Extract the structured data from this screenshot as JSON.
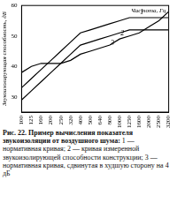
{
  "chart_data": {
    "type": "line",
    "title": "Рис. 22. Пример вычисления показателя звукоизоляции от воздушного шума:",
    "annotations": [
      "1 — нормативная кривая;",
      "2 — кривая измеренной звукоизолирующей способности конструкции;",
      "3 — нормативная кривая, сдвинутая в худшую сторону на 4 дБ"
    ],
    "x_label": "Частота, Гц",
    "y_label": "Звукоизолирующая способность, дБ",
    "categories": [
      "100",
      "125",
      "160",
      "200",
      "250",
      "320",
      "400",
      "500",
      "640",
      "800",
      "1000",
      "1250",
      "1600",
      "2000",
      "2500",
      "3200"
    ],
    "series": [
      {
        "name": "1",
        "color": "#000000",
        "line_style": "solid",
        "values": [
          33,
          36,
          39,
          42,
          45,
          48,
          51,
          52,
          53,
          54,
          55,
          56,
          56,
          56,
          56,
          56
        ]
      },
      {
        "name": "2",
        "color": "#000000",
        "line_style": "solid",
        "values": [
          38,
          40,
          41,
          41,
          41,
          42,
          44,
          45,
          46,
          47,
          49,
          50,
          51,
          53,
          55,
          58
        ]
      },
      {
        "name": "3",
        "color": "#000000",
        "line_style": "solid",
        "values": [
          29,
          32,
          35,
          38,
          41,
          44,
          47,
          48,
          49,
          50,
          51,
          52,
          52,
          52,
          52,
          52
        ]
      }
    ],
    "ylim": [
      25,
      60
    ],
    "yticks": [
      30,
      40,
      50,
      60
    ],
    "grid": false
  }
}
